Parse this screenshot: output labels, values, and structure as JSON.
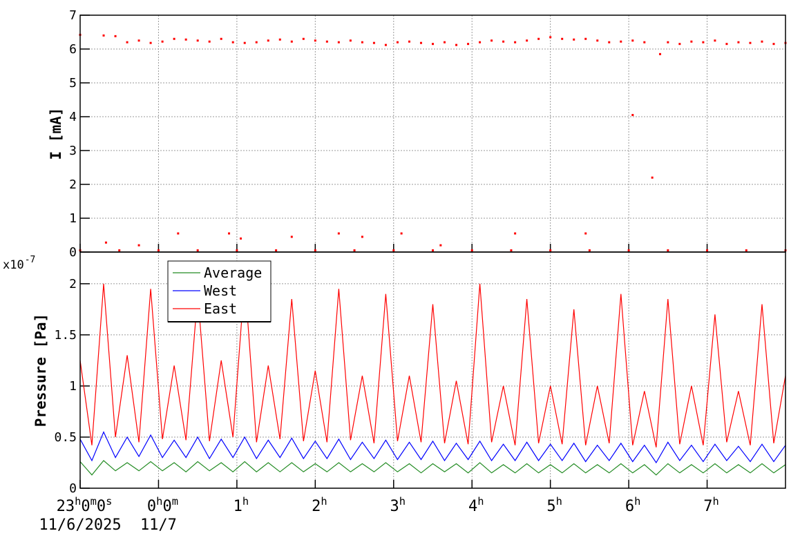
{
  "chart_data": [
    {
      "type": "scatter",
      "y_label": "I [mA]",
      "color": "#ff0000",
      "grid": true,
      "xlim": [
        0,
        9
      ],
      "xticks": [
        0,
        1,
        2,
        3,
        4,
        5,
        6,
        7,
        8
      ],
      "ylim": [
        0,
        7
      ],
      "yticks": [
        0,
        1,
        2,
        3,
        4,
        5,
        6,
        7
      ],
      "x": [
        0,
        0.3,
        0.45,
        0.6,
        0.75,
        0.9,
        1.05,
        1.2,
        1.35,
        1.5,
        1.65,
        1.8,
        1.95,
        2.1,
        2.25,
        2.4,
        2.55,
        2.7,
        2.85,
        3,
        3.15,
        3.3,
        3.45,
        3.6,
        3.75,
        3.9,
        4.05,
        4.2,
        4.35,
        4.5,
        4.65,
        4.8,
        4.95,
        5.1,
        5.25,
        5.4,
        5.55,
        5.7,
        5.85,
        6,
        6.15,
        6.3,
        6.45,
        6.6,
        6.75,
        6.9,
        7.05,
        7.2,
        7.5,
        7.65,
        7.8,
        7.95,
        8.1,
        8.25,
        8.4,
        8.55,
        8.7,
        8.85,
        9,
        0,
        0.5,
        1,
        1.5,
        2,
        2.5,
        3,
        3.5,
        4,
        4.5,
        5,
        5.5,
        6,
        6.5,
        7,
        7.5,
        8,
        8.5,
        9,
        0.33,
        0.75,
        1.25,
        1.9,
        2.05,
        2.7,
        3.3,
        3.6,
        4.1,
        4.6,
        5.55,
        6.45,
        7.05,
        7.3,
        7.4
      ],
      "values": [
        6.42,
        6.4,
        6.38,
        6.2,
        6.25,
        6.18,
        6.22,
        6.3,
        6.28,
        6.25,
        6.22,
        6.3,
        6.2,
        6.18,
        6.2,
        6.25,
        6.28,
        6.22,
        6.3,
        6.25,
        6.22,
        6.2,
        6.25,
        6.2,
        6.18,
        6.12,
        6.2,
        6.22,
        6.18,
        6.15,
        6.2,
        6.12,
        6.15,
        6.2,
        6.25,
        6.22,
        6.2,
        6.25,
        6.3,
        6.35,
        6.3,
        6.28,
        6.3,
        6.25,
        6.2,
        6.22,
        6.25,
        6.2,
        6.2,
        6.15,
        6.22,
        6.2,
        6.25,
        6.15,
        6.2,
        6.18,
        6.22,
        6.15,
        6.18,
        0.05,
        0.05,
        0.05,
        0.05,
        0.05,
        0.05,
        0.05,
        0.05,
        0.05,
        0.05,
        0.05,
        0.05,
        0.05,
        0.05,
        0.05,
        0.05,
        0.05,
        0.05,
        0.05,
        0.28,
        0.2,
        0.55,
        0.55,
        0.4,
        0.45,
        0.55,
        0.45,
        0.55,
        0.2,
        0.55,
        0.55,
        4.05,
        2.2,
        5.85
      ]
    },
    {
      "type": "line",
      "y_label": "Pressure [Pa]",
      "grid": true,
      "legend": "top-left",
      "y_multiplier": {
        "base": "x10",
        "exponent": "-7"
      },
      "xlim": [
        0,
        9
      ],
      "xticks": [
        {
          "value": 0,
          "label": "23h0m0s"
        },
        {
          "value": 1,
          "label": "0h0m"
        },
        {
          "value": 2,
          "label": "1h"
        },
        {
          "value": 3,
          "label": "2h"
        },
        {
          "value": 4,
          "label": "3h"
        },
        {
          "value": 5,
          "label": "4h"
        },
        {
          "value": 6,
          "label": "5h"
        },
        {
          "value": 7,
          "label": "6h"
        },
        {
          "value": 8,
          "label": "7h"
        }
      ],
      "x_date_labels": [
        {
          "value": 0,
          "label": "11/6/2025"
        },
        {
          "value": 1,
          "label": "11/7"
        }
      ],
      "ylim": [
        0,
        2.31
      ],
      "yticks": [
        0,
        0.5,
        1,
        1.5,
        2
      ],
      "x": [
        0,
        0.15,
        0.3,
        0.45,
        0.6,
        0.75,
        0.9,
        1.05,
        1.2,
        1.35,
        1.5,
        1.65,
        1.8,
        1.95,
        2.1,
        2.25,
        2.4,
        2.55,
        2.7,
        2.85,
        3,
        3.15,
        3.3,
        3.45,
        3.6,
        3.75,
        3.9,
        4.05,
        4.2,
        4.35,
        4.5,
        4.65,
        4.8,
        4.95,
        5.1,
        5.25,
        5.4,
        5.55,
        5.7,
        5.85,
        6,
        6.15,
        6.3,
        6.45,
        6.6,
        6.75,
        6.9,
        7.05,
        7.2,
        7.35,
        7.5,
        7.65,
        7.8,
        7.95,
        8.1,
        8.25,
        8.4,
        8.55,
        8.7,
        8.85,
        9
      ],
      "series": [
        {
          "name": "Average",
          "color": "#228b22",
          "values": [
            0.26,
            0.13,
            0.27,
            0.17,
            0.25,
            0.17,
            0.26,
            0.17,
            0.25,
            0.16,
            0.26,
            0.17,
            0.25,
            0.16,
            0.26,
            0.16,
            0.25,
            0.16,
            0.25,
            0.16,
            0.24,
            0.16,
            0.25,
            0.16,
            0.24,
            0.16,
            0.25,
            0.16,
            0.24,
            0.15,
            0.24,
            0.16,
            0.24,
            0.15,
            0.25,
            0.15,
            0.23,
            0.15,
            0.24,
            0.15,
            0.23,
            0.15,
            0.24,
            0.15,
            0.23,
            0.15,
            0.24,
            0.15,
            0.23,
            0.13,
            0.24,
            0.15,
            0.23,
            0.15,
            0.24,
            0.15,
            0.23,
            0.15,
            0.24,
            0.15,
            0.23
          ]
        },
        {
          "name": "West",
          "color": "#0000ff",
          "values": [
            0.48,
            0.27,
            0.55,
            0.3,
            0.5,
            0.31,
            0.52,
            0.3,
            0.47,
            0.3,
            0.5,
            0.29,
            0.48,
            0.3,
            0.5,
            0.29,
            0.47,
            0.3,
            0.49,
            0.29,
            0.46,
            0.29,
            0.48,
            0.28,
            0.45,
            0.29,
            0.47,
            0.28,
            0.45,
            0.28,
            0.46,
            0.27,
            0.44,
            0.28,
            0.46,
            0.27,
            0.43,
            0.27,
            0.45,
            0.27,
            0.43,
            0.27,
            0.44,
            0.26,
            0.42,
            0.27,
            0.44,
            0.26,
            0.42,
            0.25,
            0.45,
            0.27,
            0.42,
            0.26,
            0.43,
            0.27,
            0.41,
            0.26,
            0.43,
            0.26,
            0.42
          ]
        },
        {
          "name": "East",
          "color": "#ff0000",
          "values": [
            1.25,
            0.42,
            2.0,
            0.5,
            1.3,
            0.45,
            1.95,
            0.48,
            1.2,
            0.47,
            1.9,
            0.46,
            1.25,
            0.5,
            2.05,
            0.45,
            1.2,
            0.48,
            1.85,
            0.46,
            1.15,
            0.45,
            1.95,
            0.47,
            1.1,
            0.44,
            1.9,
            0.46,
            1.1,
            0.45,
            1.8,
            0.44,
            1.05,
            0.43,
            2.0,
            0.45,
            1.0,
            0.42,
            1.85,
            0.44,
            1.0,
            0.43,
            1.75,
            0.42,
            1.0,
            0.44,
            1.9,
            0.42,
            0.95,
            0.4,
            1.85,
            0.43,
            1.0,
            0.42,
            1.7,
            0.45,
            0.95,
            0.42,
            1.8,
            0.44,
            1.1
          ]
        }
      ]
    }
  ]
}
